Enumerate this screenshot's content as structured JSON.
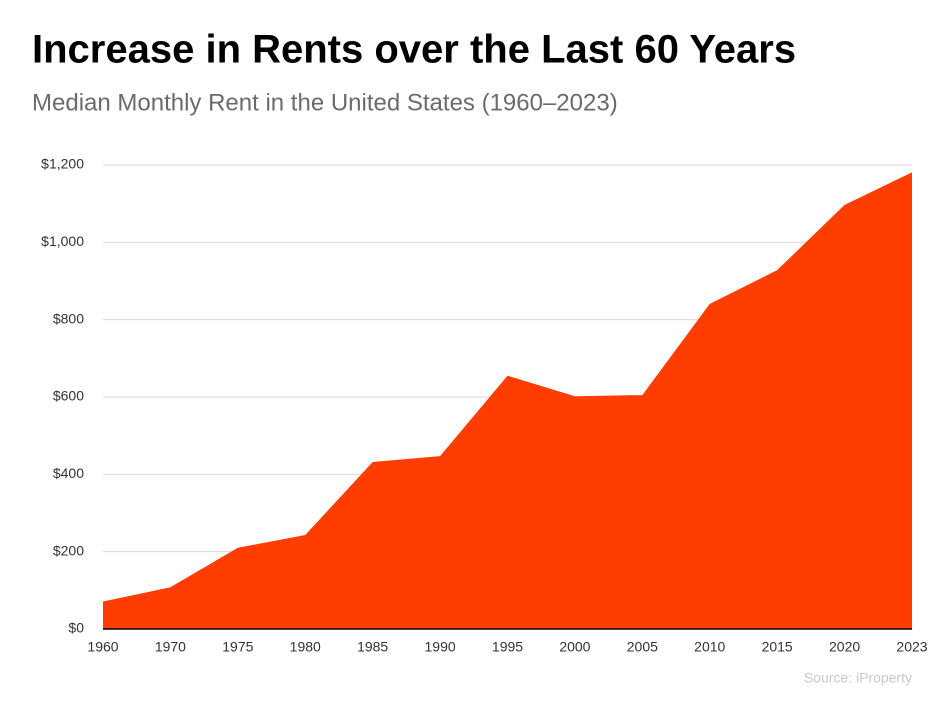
{
  "chart_data": {
    "type": "area",
    "title": "Increase in Rents over the Last 60 Years",
    "subtitle": "Median Monthly Rent in the United States (1960–2023)",
    "source": "Source: iProperty",
    "categories": [
      "1960",
      "1970",
      "1975",
      "1980",
      "1985",
      "1990",
      "1995",
      "2000",
      "2005",
      "2010",
      "2015",
      "2020",
      "2023"
    ],
    "values": [
      71,
      108,
      210,
      243,
      432,
      447,
      655,
      602,
      605,
      841,
      928,
      1097,
      1181
    ],
    "color": "#ff3d00",
    "ylim": [
      0,
      1200
    ],
    "yticks": [
      {
        "value": 0,
        "label": "$0"
      },
      {
        "value": 200,
        "label": "$200"
      },
      {
        "value": 400,
        "label": "$400"
      },
      {
        "value": 600,
        "label": "$600"
      },
      {
        "value": 800,
        "label": "$800"
      },
      {
        "value": 1000,
        "label": "$1,000"
      },
      {
        "value": 1200,
        "label": "$1,200"
      }
    ],
    "grid": true
  }
}
